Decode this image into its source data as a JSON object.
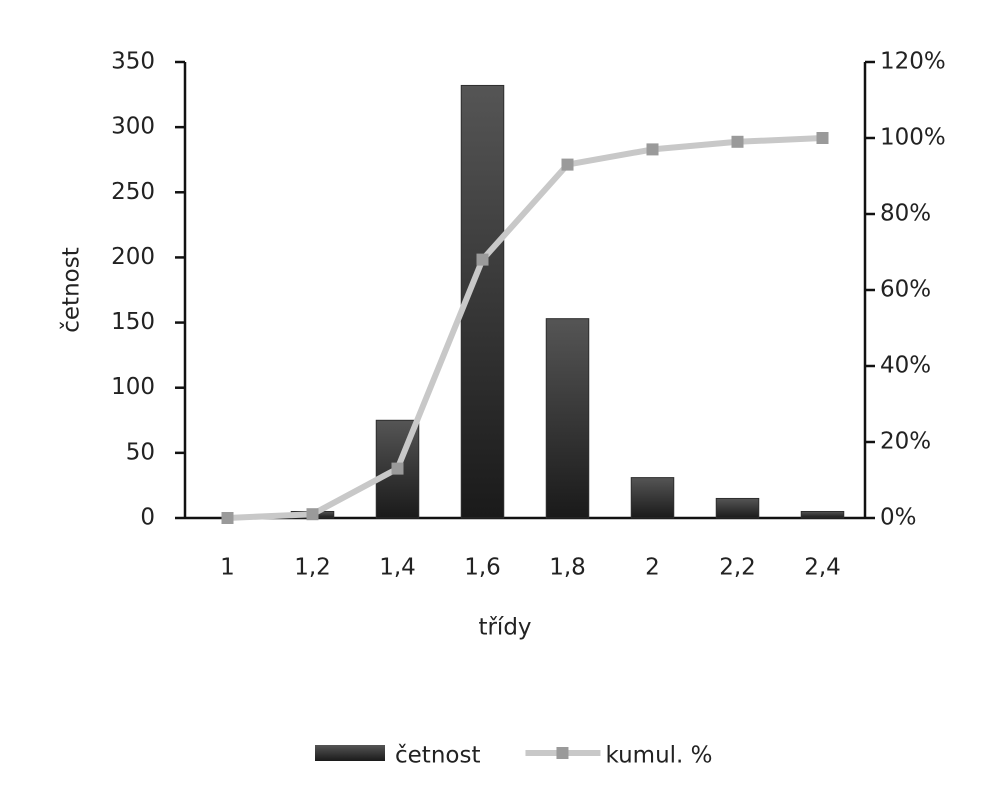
{
  "chart_data": {
    "type": "combo",
    "categories": [
      "1",
      "1,2",
      "1,4",
      "1,6",
      "1,8",
      "2",
      "2,2",
      "2,4"
    ],
    "series": [
      {
        "name": "četnost",
        "type": "bar",
        "color": "#2e2e2e",
        "values": [
          0,
          5,
          75,
          332,
          153,
          31,
          15,
          5
        ]
      },
      {
        "name": "kumul. %",
        "type": "line",
        "axis": "y2",
        "color": "#c8c8c8",
        "marker_color": "#9a9a9a",
        "values": [
          0,
          1,
          13,
          68,
          93,
          97,
          99,
          100
        ]
      }
    ],
    "xlabel": "třídy",
    "ylabel": "četnost",
    "ylim": [
      0,
      350
    ],
    "yticks": [
      0,
      50,
      100,
      150,
      200,
      250,
      300,
      350
    ],
    "y2lim": [
      0,
      120
    ],
    "y2ticks": [
      {
        "value": 0,
        "label": "0%"
      },
      {
        "value": 20,
        "label": "20%"
      },
      {
        "value": 40,
        "label": "40%"
      },
      {
        "value": 60,
        "label": "60%"
      },
      {
        "value": 80,
        "label": "80%"
      },
      {
        "value": 100,
        "label": "100%"
      },
      {
        "value": 120,
        "label": "120%"
      }
    ],
    "legend": "bottom"
  }
}
